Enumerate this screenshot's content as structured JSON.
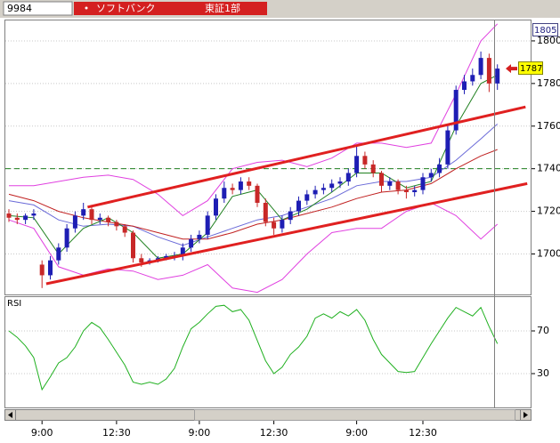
{
  "header": {
    "code": "9984",
    "name": "ソフトバンク",
    "market": "東証1部"
  },
  "chart_data": [
    {
      "type": "candlestick",
      "categories": [
        null,
        null,
        null,
        null,
        "9:00",
        null,
        null,
        null,
        null,
        null,
        null,
        null,
        null,
        "12:30",
        null,
        null,
        null,
        null,
        null,
        null,
        null,
        null,
        null,
        "9:00",
        null,
        null,
        null,
        null,
        null,
        null,
        null,
        null,
        "12:30",
        null,
        null,
        null,
        null,
        null,
        null,
        null,
        null,
        null,
        "9:00",
        null,
        null,
        null,
        null,
        null,
        null,
        null,
        "12:30",
        null,
        null,
        null,
        null,
        null,
        null,
        null,
        null,
        null
      ],
      "open": [
        1719,
        1717,
        1716,
        1718,
        1695,
        1690,
        1697,
        1703,
        1712,
        1718,
        1721,
        1716,
        1717,
        1715,
        1713,
        1710,
        1698,
        1696,
        1697,
        1698,
        1699,
        1699,
        1703,
        1707,
        1709,
        1718,
        1726,
        1731,
        1730,
        1734,
        1732,
        1724,
        1715,
        1712,
        1716,
        1720,
        1725,
        1728,
        1730,
        1731,
        1733,
        1734,
        1738,
        1746,
        1742,
        1738,
        1732,
        1734,
        1730,
        1729,
        1730,
        1736,
        1738,
        1742,
        1758,
        1777,
        1781,
        1784,
        1792,
        1780
      ],
      "high": [
        1721,
        1719,
        1719,
        1721,
        1697,
        1699,
        1705,
        1714,
        1720,
        1724,
        1723,
        1719,
        1718,
        1716,
        1714,
        1711,
        1700,
        1698,
        1699,
        1700,
        1701,
        1705,
        1709,
        1711,
        1720,
        1728,
        1734,
        1733,
        1736,
        1736,
        1733,
        1726,
        1717,
        1718,
        1722,
        1727,
        1730,
        1732,
        1733,
        1735,
        1736,
        1740,
        1751,
        1748,
        1744,
        1739,
        1736,
        1735,
        1732,
        1732,
        1738,
        1740,
        1745,
        1761,
        1779,
        1784,
        1787,
        1795,
        1794,
        1789
      ],
      "low": [
        1715,
        1714,
        1714,
        1716,
        1684,
        1688,
        1695,
        1701,
        1710,
        1716,
        1714,
        1714,
        1713,
        1711,
        1708,
        1696,
        1694,
        1695,
        1696,
        1697,
        1697,
        1697,
        1701,
        1705,
        1707,
        1716,
        1724,
        1728,
        1728,
        1730,
        1722,
        1713,
        1709,
        1710,
        1714,
        1718,
        1723,
        1726,
        1728,
        1729,
        1731,
        1732,
        1736,
        1740,
        1736,
        1729,
        1730,
        1728,
        1726,
        1727,
        1728,
        1734,
        1736,
        1740,
        1756,
        1775,
        1779,
        1782,
        1776,
        1777
      ],
      "close": [
        1717,
        1716,
        1718,
        1719,
        1690,
        1697,
        1703,
        1712,
        1718,
        1721,
        1716,
        1717,
        1715,
        1713,
        1710,
        1698,
        1696,
        1697,
        1698,
        1699,
        1699,
        1703,
        1707,
        1709,
        1718,
        1726,
        1731,
        1730,
        1734,
        1732,
        1724,
        1715,
        1712,
        1716,
        1720,
        1725,
        1728,
        1730,
        1731,
        1733,
        1734,
        1738,
        1746,
        1742,
        1738,
        1732,
        1734,
        1730,
        1729,
        1730,
        1736,
        1738,
        1742,
        1758,
        1777,
        1781,
        1784,
        1792,
        1780,
        1787
      ],
      "up_color": "#1e1eb4",
      "down_color": "#c82828",
      "ylim": [
        1681,
        1810
      ],
      "yticks": [
        1700,
        1720,
        1740,
        1760,
        1780,
        1800
      ],
      "grid": true,
      "top_label": 1805,
      "last_label": 1787,
      "overlays": {
        "x": [
          0,
          3,
          6,
          9,
          12,
          15,
          18,
          21,
          24,
          27,
          30,
          33,
          36,
          39,
          42,
          45,
          48,
          51,
          54,
          57,
          59
        ],
        "series": [
          {
            "color": "#e040e0",
            "values": [
              1732,
              1732,
              1734,
              1736,
              1737,
              1735,
              1728,
              1718,
              1725,
              1740,
              1743,
              1744,
              1741,
              1745,
              1752,
              1752,
              1750,
              1752,
              1775,
              1800,
              1808
            ]
          },
          {
            "color": "#e040e0",
            "values": [
              1716,
              1712,
              1694,
              1690,
              1693,
              1692,
              1688,
              1690,
              1695,
              1684,
              1682,
              1688,
              1700,
              1710,
              1712,
              1712,
              1720,
              1724,
              1718,
              1707,
              1714
            ]
          },
          {
            "color": "#6a6ad8",
            "values": [
              1725,
              1723,
              1716,
              1713,
              1714,
              1713,
              1708,
              1704,
              1708,
              1712,
              1716,
              1718,
              1722,
              1726,
              1732,
              1734,
              1734,
              1736,
              1744,
              1754,
              1761
            ]
          },
          {
            "color": "#c02020",
            "values": [
              1728,
              1725,
              1720,
              1717,
              1715,
              1713,
              1710,
              1707,
              1707,
              1710,
              1714,
              1716,
              1719,
              1722,
              1726,
              1729,
              1730,
              1733,
              1740,
              1746,
              1749
            ]
          },
          {
            "color": "#208020",
            "values": [
              1718,
              1717,
              1700,
              1712,
              1717,
              1710,
              1698,
              1700,
              1710,
              1727,
              1730,
              1716,
              1721,
              1729,
              1738,
              1738,
              1731,
              1734,
              1760,
              1780,
              1784
            ]
          }
        ]
      },
      "trendlines": [
        {
          "color": "#e02020",
          "x": [
            9.5,
            62.4
          ],
          "y": [
            1722,
            1769
          ]
        },
        {
          "color": "#e02020",
          "x": [
            4.5,
            62.6
          ],
          "y": [
            1686,
            1733
          ]
        }
      ],
      "hlines": [
        {
          "value": 1740,
          "color": "#208020",
          "dashed": true
        }
      ]
    },
    {
      "type": "line",
      "title": "RSI",
      "color": "#20b020",
      "values": [
        70,
        64,
        56,
        45,
        15,
        27,
        40,
        45,
        55,
        70,
        78,
        73,
        62,
        50,
        38,
        22,
        20,
        22,
        20,
        25,
        35,
        55,
        72,
        78,
        86,
        93,
        94,
        88,
        90,
        80,
        61,
        42,
        30,
        36,
        48,
        55,
        65,
        82,
        86,
        82,
        88,
        84,
        90,
        80,
        62,
        48,
        40,
        32,
        31,
        32,
        45,
        58,
        70,
        82,
        92,
        88,
        84,
        92,
        74,
        58
      ],
      "ylim": [
        0,
        100
      ],
      "yticks": [
        30,
        70
      ],
      "grid": true
    }
  ]
}
